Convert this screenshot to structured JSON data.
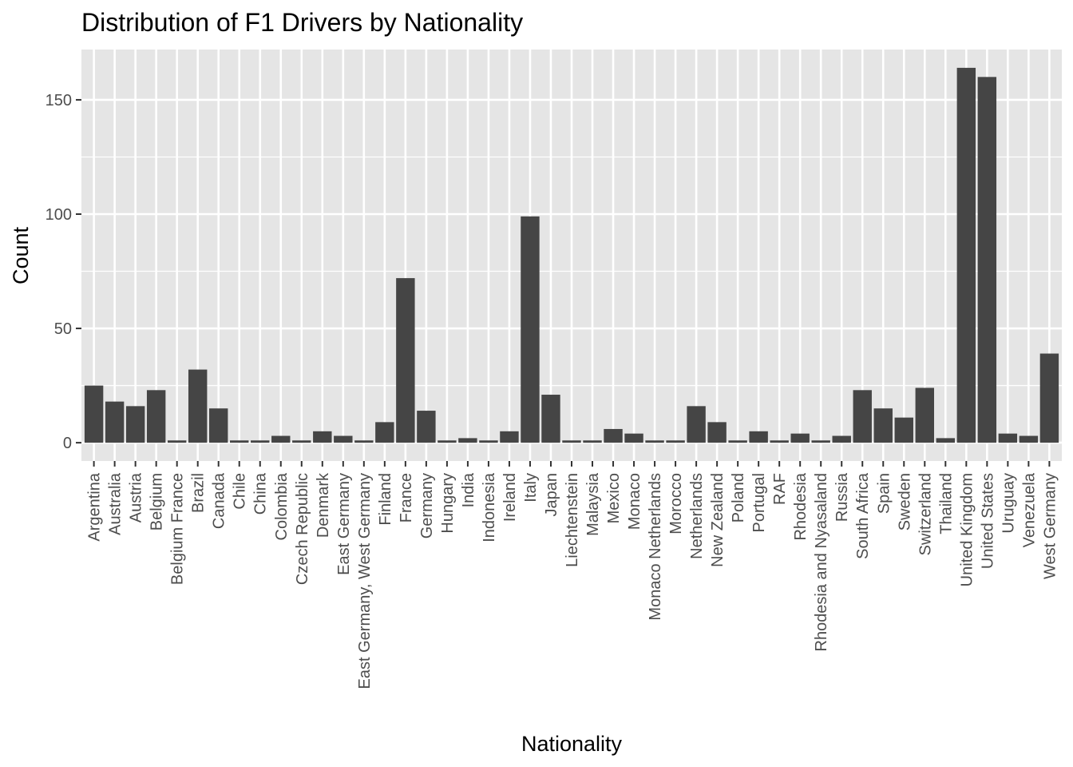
{
  "chart_data": {
    "type": "bar",
    "title": "Distribution of F1 Drivers by Nationality",
    "xlabel": "Nationality",
    "ylabel": "Count",
    "ylim": [
      -8,
      172
    ],
    "yticks": [
      0,
      50,
      100,
      150
    ],
    "grid": true,
    "legend": "none",
    "bar_color": "#454545",
    "panel_color": "#e5e5e5",
    "grid_color": "#ffffff",
    "categories": [
      "Argentina",
      "Australia",
      "Austria",
      "Belgium",
      "Belgium France",
      "Brazil",
      "Canada",
      "Chile",
      "China",
      "Colombia",
      "Czech Republic",
      "Denmark",
      "East Germany",
      "East Germany, West Germany",
      "Finland",
      "France",
      "Germany",
      "Hungary",
      "India",
      "Indonesia",
      "Ireland",
      "Italy",
      "Japan",
      "Liechtenstein",
      "Malaysia",
      "Mexico",
      "Monaco",
      "Monaco Netherlands",
      "Morocco",
      "Netherlands",
      "New Zealand",
      "Poland",
      "Portugal",
      "RAF",
      "Rhodesia",
      "Rhodesia and Nyasaland",
      "Russia",
      "South Africa",
      "Spain",
      "Sweden",
      "Switzerland",
      "Thailand",
      "United Kingdom",
      "United States",
      "Uruguay",
      "Venezuela",
      "West Germany"
    ],
    "values": [
      25,
      18,
      16,
      23,
      1,
      32,
      15,
      1,
      1,
      3,
      1,
      5,
      3,
      1,
      9,
      72,
      14,
      1,
      2,
      1,
      5,
      99,
      21,
      1,
      1,
      6,
      4,
      1,
      1,
      16,
      9,
      1,
      5,
      1,
      4,
      1,
      3,
      23,
      15,
      11,
      24,
      2,
      164,
      160,
      4,
      3,
      39
    ]
  }
}
